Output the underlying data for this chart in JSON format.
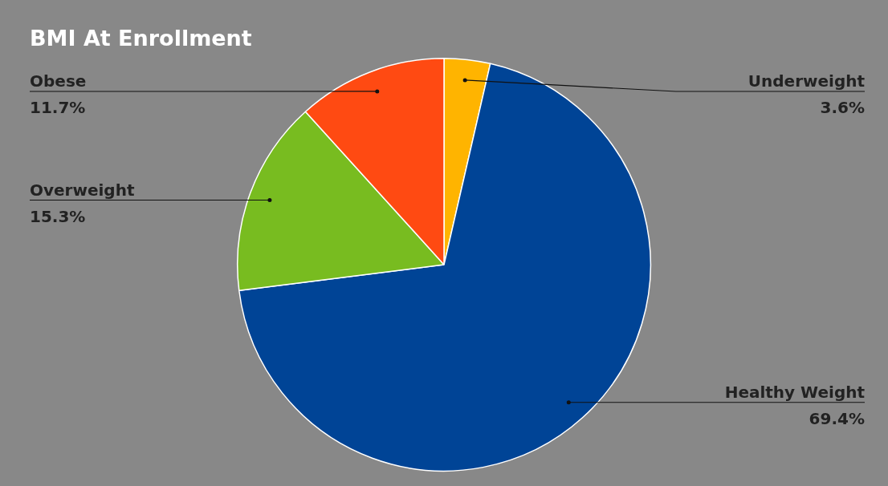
{
  "chart_data": {
    "type": "pie",
    "title": "BMI At Enrollment",
    "categories": [
      "Underweight",
      "Healthy Weight",
      "Overweight",
      "Obese"
    ],
    "values": [
      3.6,
      69.4,
      15.3,
      11.7
    ],
    "colors": [
      "#ffb400",
      "#004496",
      "#78bc20",
      "#ff4a12"
    ],
    "value_labels": [
      "3.6%",
      "69.4%",
      "15.3%",
      "11.7%"
    ],
    "legend": false
  }
}
